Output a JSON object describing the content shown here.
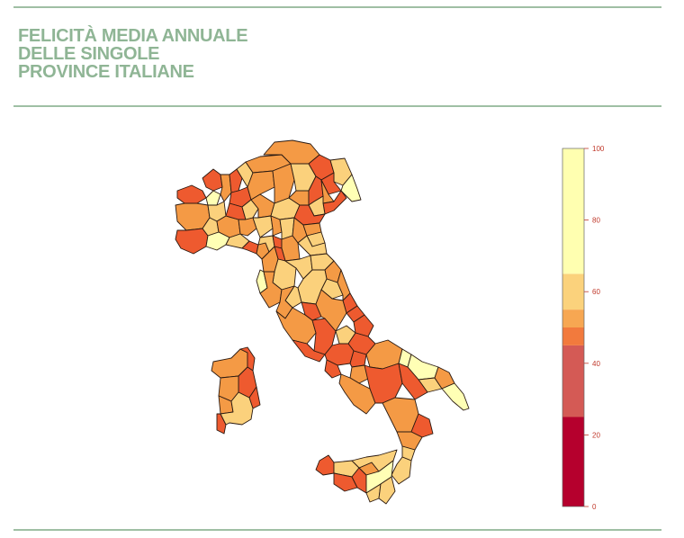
{
  "title_lines": [
    "FELICITÀ MEDIA ANNUALE",
    "DELLE SINGOLE",
    "PROVINCE ITALIANE"
  ],
  "legend": {
    "min": 0,
    "max": 100,
    "ticks": [
      "100",
      "80",
      "60",
      "40",
      "20",
      "0"
    ],
    "bands": [
      {
        "from": 0,
        "to": 25,
        "color": "#b5002d"
      },
      {
        "from": 25,
        "to": 45,
        "color": "#d45a55"
      },
      {
        "from": 45,
        "to": 50,
        "color": "#f27a3d"
      },
      {
        "from": 50,
        "to": 55,
        "color": "#f7a752"
      },
      {
        "from": 55,
        "to": 65,
        "color": "#fbd27c"
      },
      {
        "from": 65,
        "to": 100,
        "color": "#ffffb0"
      }
    ]
  },
  "map_colors": {
    "red": "#ee5a2f",
    "orange": "#f49a45",
    "light": "#fbd17c",
    "pale": "#ffffb5",
    "border": "#2a1a12"
  }
}
